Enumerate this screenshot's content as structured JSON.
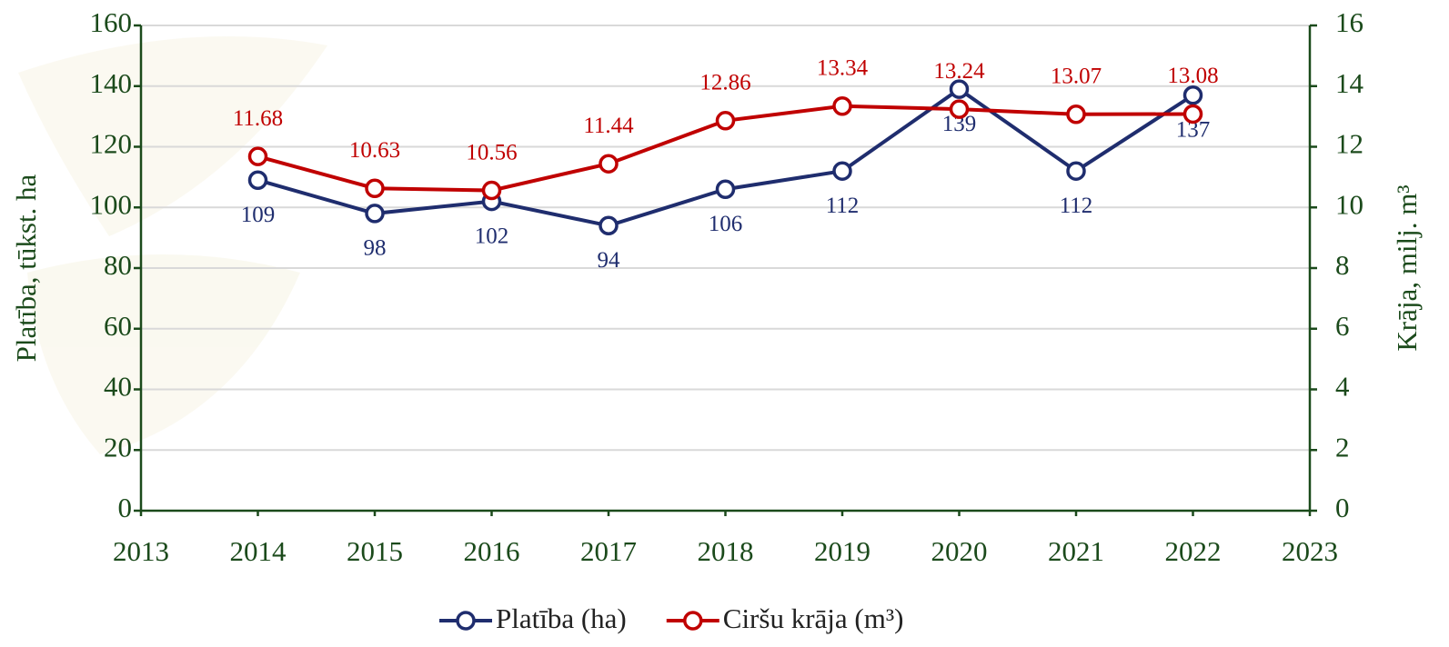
{
  "chart_data": {
    "type": "line",
    "y_label": "Platība, tūkst. ha",
    "y2_label": "Krāja, milj. m³",
    "x": [
      2014,
      2015,
      2016,
      2017,
      2018,
      2019,
      2020,
      2021,
      2022
    ],
    "series": [
      {
        "name": "Platība (ha)",
        "color": "#1f2d6e",
        "values": [
          109,
          98,
          102,
          94,
          106,
          112,
          139,
          112,
          137
        ]
      },
      {
        "name": "Ciršu krāja (m³)",
        "color": "#c00000",
        "axis": "y2",
        "values": [
          11.68,
          10.63,
          10.56,
          11.44,
          12.86,
          13.34,
          13.24,
          13.07,
          13.08
        ]
      }
    ],
    "xlim": [
      2013,
      2023
    ],
    "xticks": [
      2013,
      2014,
      2015,
      2016,
      2017,
      2018,
      2019,
      2020,
      2021,
      2022,
      2023
    ],
    "ylim": [
      0,
      160
    ],
    "yticks": [
      0,
      20,
      40,
      60,
      80,
      100,
      120,
      140,
      160
    ],
    "y2lim": [
      0,
      16
    ],
    "y2ticks": [
      0,
      2,
      4,
      6,
      8,
      10,
      12,
      14,
      16
    ],
    "grid": true,
    "legend": "bottom"
  }
}
